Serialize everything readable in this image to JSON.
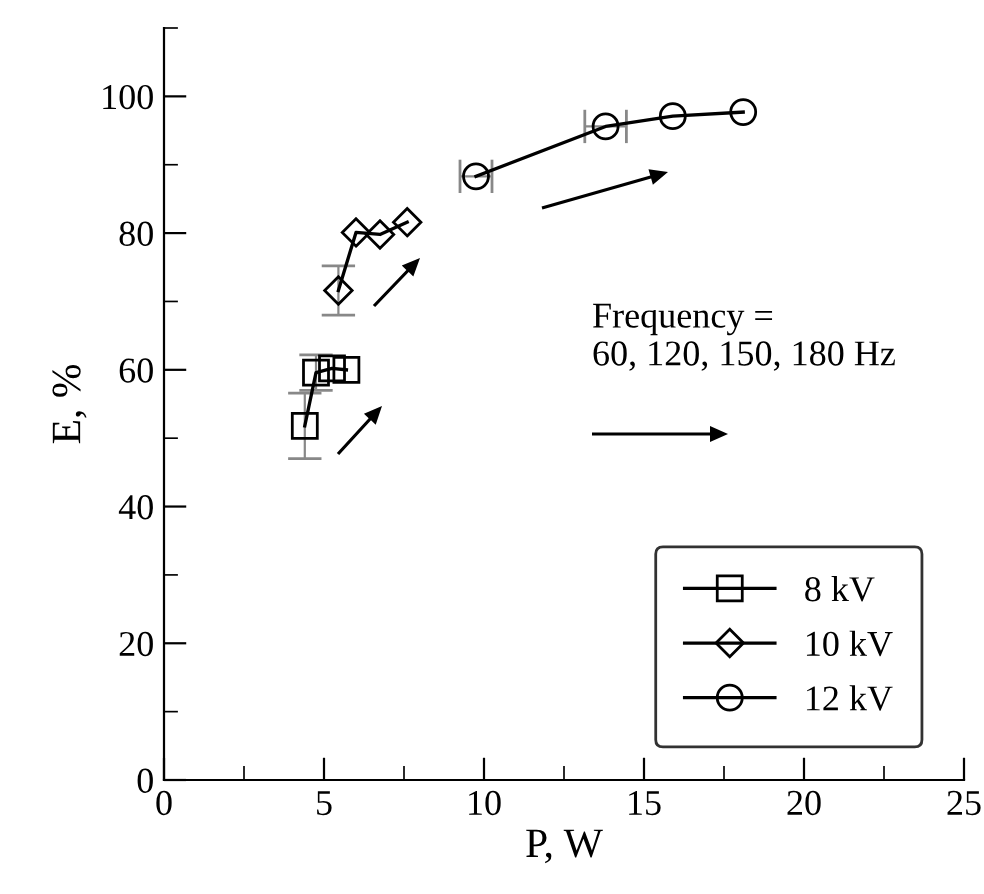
{
  "chart_data": {
    "type": "line",
    "xlabel": "P, W",
    "ylabel": "E, %",
    "xlim": [
      0,
      25
    ],
    "xticks": [
      0,
      5,
      10,
      15,
      20,
      25
    ],
    "ylim": [
      0,
      110
    ],
    "yticks": [
      0,
      20,
      40,
      60,
      80,
      100
    ],
    "grid": false,
    "legend": "lower right",
    "annotations": [
      "Frequency =\n60, 120, 150, 180 Hz"
    ],
    "series": [
      {
        "name": "8 kV",
        "color": "#000000",
        "marker": "square",
        "x": [
          4.4,
          4.75,
          5.25,
          5.7
        ],
        "values": [
          51.8,
          59.6,
          60.2,
          60.0
        ],
        "errors": [
          4.8,
          2.6,
          null,
          null
        ]
      },
      {
        "name": "10 kV",
        "color": "#000000",
        "marker": "diamond",
        "x": [
          5.45,
          6.0,
          6.75,
          7.6
        ],
        "values": [
          71.6,
          80.1,
          79.8,
          81.6
        ],
        "errors": [
          3.6,
          null,
          null,
          null
        ]
      },
      {
        "name": "12 kV",
        "color": "#000000",
        "marker": "circle",
        "x": [
          9.75,
          13.8,
          15.9,
          18.1
        ],
        "values": [
          88.3,
          95.6,
          97.1,
          97.7
        ],
        "xerrors": [
          0.5,
          0.65,
          null,
          null
        ]
      }
    ]
  }
}
